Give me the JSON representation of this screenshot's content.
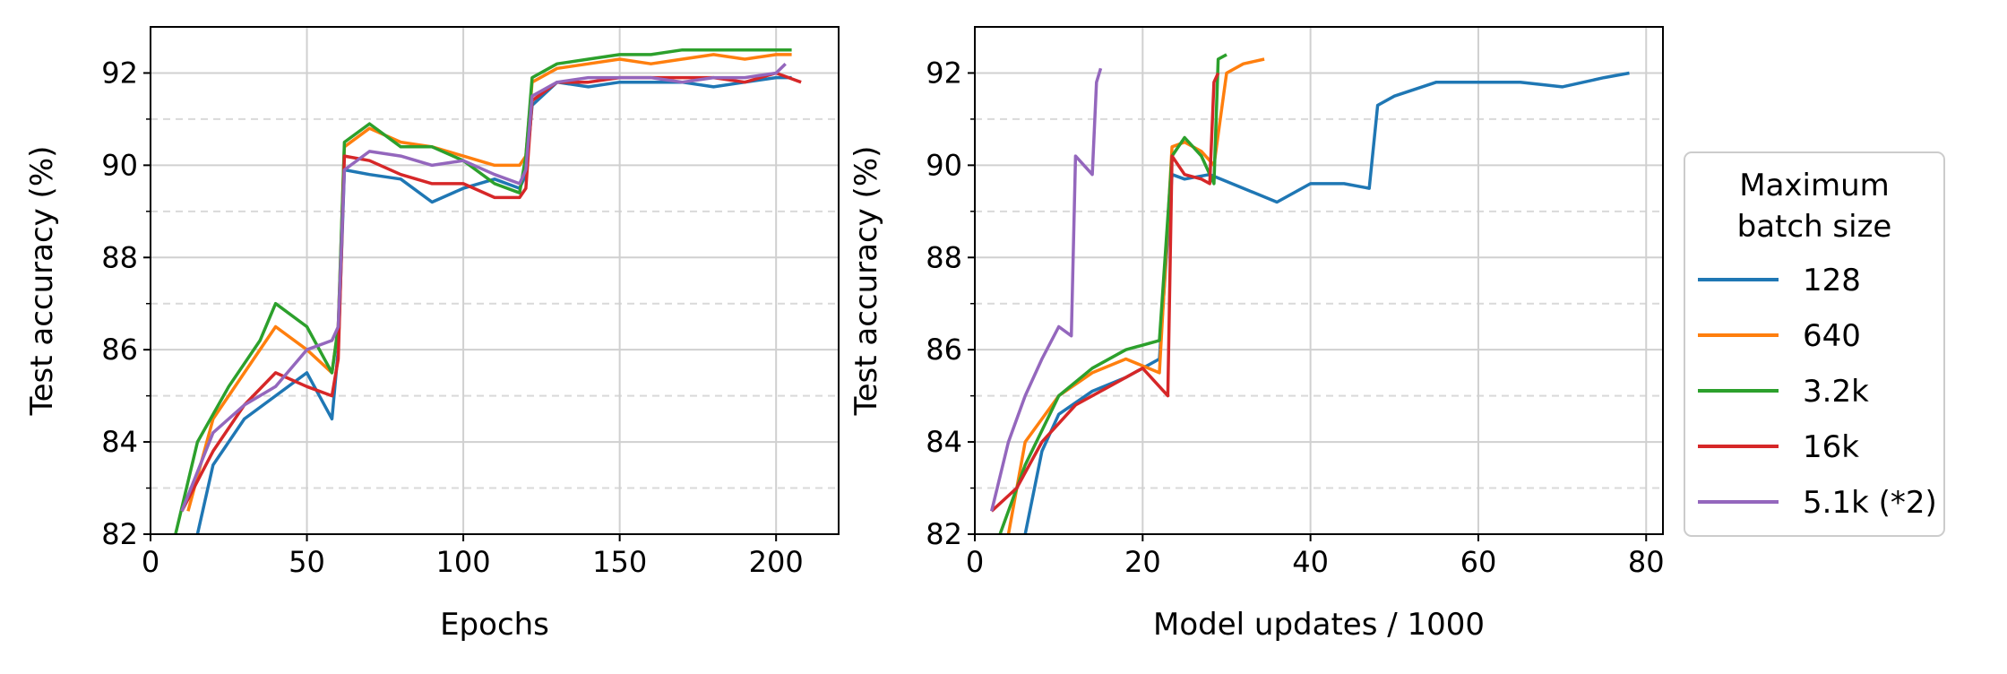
{
  "colors": {
    "128": "#1f77b4",
    "640": "#ff7f0e",
    "3.2k": "#2ca02c",
    "16k": "#d62728",
    "5.1k (*2)": "#9467bd"
  },
  "legend": {
    "title_line1": "Maximum",
    "title_line2": "batch size",
    "entries": [
      "128",
      "640",
      "3.2k",
      "16k",
      "5.1k (*2)"
    ]
  },
  "chart_data": [
    {
      "type": "line",
      "xlabel": "Epochs",
      "ylabel": "Test accuracy (%)",
      "xlim": [
        0,
        220
      ],
      "ylim": [
        82,
        93
      ],
      "xticks": [
        0,
        50,
        100,
        150,
        200
      ],
      "yticks": [
        82,
        84,
        86,
        88,
        90,
        92
      ],
      "grid": true,
      "series": [
        {
          "name": "128",
          "x": [
            15,
            20,
            30,
            40,
            50,
            58,
            60,
            62,
            70,
            80,
            90,
            100,
            110,
            118,
            120,
            122,
            130,
            140,
            150,
            160,
            170,
            180,
            190,
            200,
            205
          ],
          "y": [
            82.0,
            83.5,
            84.5,
            85.0,
            85.5,
            84.5,
            86.0,
            89.9,
            89.8,
            89.7,
            89.2,
            89.5,
            89.7,
            89.5,
            89.8,
            91.3,
            91.8,
            91.7,
            91.8,
            91.8,
            91.8,
            91.7,
            91.8,
            91.9,
            91.9
          ]
        },
        {
          "name": "640",
          "x": [
            12,
            20,
            30,
            40,
            50,
            58,
            60,
            62,
            70,
            80,
            90,
            100,
            110,
            118,
            120,
            122,
            130,
            140,
            150,
            160,
            170,
            180,
            190,
            200,
            205
          ],
          "y": [
            82.5,
            84.5,
            85.5,
            86.5,
            86.0,
            85.5,
            86.5,
            90.4,
            90.8,
            90.5,
            90.4,
            90.2,
            90.0,
            90.0,
            90.2,
            91.8,
            92.1,
            92.2,
            92.3,
            92.2,
            92.3,
            92.4,
            92.3,
            92.4,
            92.4
          ]
        },
        {
          "name": "3.2k",
          "x": [
            8,
            15,
            25,
            35,
            40,
            50,
            58,
            60,
            62,
            70,
            80,
            90,
            100,
            110,
            118,
            120,
            122,
            130,
            140,
            150,
            160,
            170,
            180,
            190,
            200,
            205
          ],
          "y": [
            82.0,
            84.0,
            85.2,
            86.2,
            87.0,
            86.5,
            85.5,
            86.5,
            90.5,
            90.9,
            90.4,
            90.4,
            90.1,
            89.6,
            89.4,
            90.2,
            91.9,
            92.2,
            92.3,
            92.4,
            92.4,
            92.5,
            92.5,
            92.5,
            92.5,
            92.5
          ]
        },
        {
          "name": "16k",
          "x": [
            10,
            20,
            30,
            40,
            50,
            58,
            60,
            62,
            70,
            80,
            90,
            100,
            110,
            118,
            120,
            122,
            130,
            140,
            150,
            160,
            170,
            180,
            190,
            200,
            208
          ],
          "y": [
            82.5,
            83.8,
            84.8,
            85.5,
            85.2,
            85.0,
            85.8,
            90.2,
            90.1,
            89.8,
            89.6,
            89.6,
            89.3,
            89.3,
            89.5,
            91.4,
            91.8,
            91.8,
            91.9,
            91.9,
            91.9,
            91.9,
            91.8,
            92.0,
            91.8
          ]
        },
        {
          "name": "5.1k (*2)",
          "x": [
            10,
            20,
            30,
            40,
            50,
            58,
            60,
            62,
            70,
            80,
            90,
            100,
            110,
            118,
            120,
            122,
            130,
            140,
            150,
            160,
            170,
            180,
            190,
            200,
            203
          ],
          "y": [
            82.5,
            84.2,
            84.8,
            85.2,
            86.0,
            86.2,
            86.5,
            89.9,
            90.3,
            90.2,
            90.0,
            90.1,
            89.8,
            89.6,
            89.9,
            91.5,
            91.8,
            91.9,
            91.9,
            91.9,
            91.8,
            91.9,
            91.9,
            92.0,
            92.2
          ]
        }
      ]
    },
    {
      "type": "line",
      "xlabel": "Model updates / 1000",
      "ylabel": "Test accuracy (%)",
      "xlim": [
        0,
        82
      ],
      "ylim": [
        82,
        93
      ],
      "xticks": [
        0,
        20,
        40,
        60,
        80
      ],
      "yticks": [
        82,
        84,
        86,
        88,
        90,
        92
      ],
      "grid": true,
      "series": [
        {
          "name": "128",
          "x": [
            6,
            8,
            10,
            14,
            18,
            22,
            23.5,
            25,
            28,
            32,
            36,
            40,
            44,
            47,
            48,
            50,
            55,
            60,
            65,
            70,
            75,
            78
          ],
          "y": [
            82.0,
            83.8,
            84.6,
            85.1,
            85.4,
            85.8,
            89.8,
            89.7,
            89.8,
            89.5,
            89.2,
            89.6,
            89.6,
            89.5,
            91.3,
            91.5,
            91.8,
            91.8,
            91.8,
            91.7,
            91.9,
            92.0
          ]
        },
        {
          "name": "640",
          "x": [
            4,
            6,
            10,
            14,
            18,
            22,
            23.5,
            25,
            27,
            28.5,
            30,
            32,
            34.5
          ],
          "y": [
            82.0,
            84.0,
            85.0,
            85.5,
            85.8,
            85.5,
            90.4,
            90.5,
            90.3,
            90.0,
            92.0,
            92.2,
            92.3
          ]
        },
        {
          "name": "3.2k",
          "x": [
            3,
            6,
            10,
            14,
            18,
            22,
            23.5,
            25,
            27,
            28.5,
            29,
            30
          ],
          "y": [
            82.0,
            83.5,
            85.0,
            85.6,
            86.0,
            86.2,
            90.2,
            90.6,
            90.2,
            89.6,
            92.3,
            92.4
          ]
        },
        {
          "name": "16k",
          "x": [
            2,
            5,
            8,
            12,
            16,
            20,
            23,
            23.5,
            25,
            27,
            28,
            28.5,
            29
          ],
          "y": [
            82.5,
            83.0,
            84.0,
            84.8,
            85.2,
            85.6,
            85.0,
            90.2,
            89.8,
            89.7,
            89.6,
            91.8,
            92.0
          ]
        },
        {
          "name": "5.1k (*2)",
          "x": [
            2,
            4,
            6,
            8,
            10,
            11.5,
            12,
            13,
            14,
            14.5,
            15
          ],
          "y": [
            82.5,
            84.0,
            85.0,
            85.8,
            86.5,
            86.3,
            90.2,
            90.0,
            89.8,
            91.8,
            92.1
          ]
        }
      ]
    }
  ]
}
